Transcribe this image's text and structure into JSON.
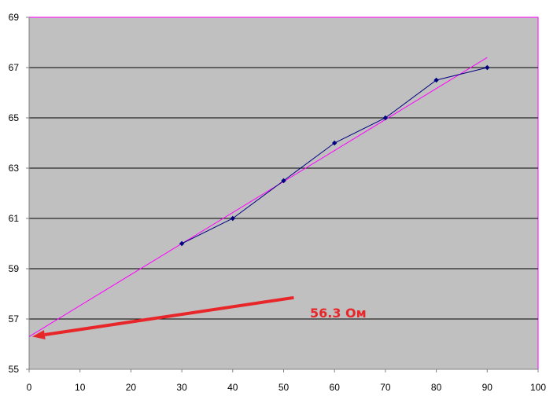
{
  "chart_data": {
    "type": "line",
    "title": "",
    "xlabel": "",
    "ylabel": "",
    "xlim": [
      0,
      100
    ],
    "ylim": [
      55,
      69
    ],
    "x_ticks": [
      "0",
      "10",
      "20",
      "30",
      "40",
      "50",
      "60",
      "70",
      "80",
      "90",
      "100"
    ],
    "y_ticks": [
      "55",
      "57",
      "59",
      "61",
      "63",
      "65",
      "67",
      "69"
    ],
    "grid": "horizontal",
    "series": [
      {
        "x": [
          30,
          40,
          50,
          60,
          70,
          80,
          90
        ],
        "y": [
          60,
          61,
          62.5,
          64,
          65,
          66.5,
          67
        ],
        "marker": "diamond"
      }
    ],
    "trendline": {
      "x": [
        0,
        90
      ],
      "y": [
        56.3,
        67.4
      ]
    },
    "annotation": {
      "text": "56.3 Ом",
      "arrow_from": [
        52,
        57.85
      ],
      "arrow_to": [
        0,
        56.3
      ]
    },
    "colors": {
      "plot_background": "#c0c0c0",
      "series": "#000080",
      "trendline": "#ff00ff",
      "annotation": "#e8262a",
      "grid": "#000000"
    }
  }
}
